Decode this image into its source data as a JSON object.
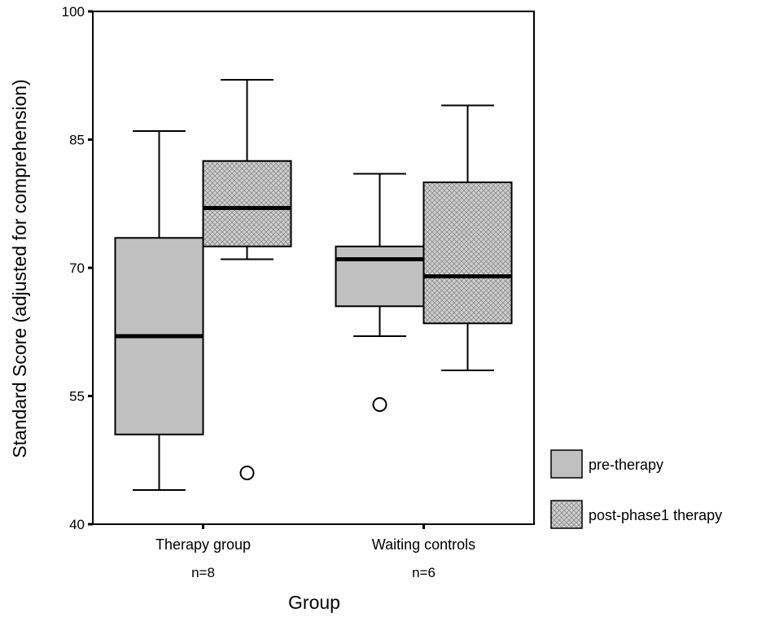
{
  "chart_data": {
    "type": "boxplot",
    "xlabel": "Group",
    "ylabel": "Standard Score (adjusted for comprehension)",
    "ylim": [
      40,
      100
    ],
    "yticks": [
      40,
      55,
      70,
      85,
      100
    ],
    "categories": [
      {
        "label": "Therapy group",
        "n_label": "n=8"
      },
      {
        "label": "Waiting controls",
        "n_label": "n=6"
      }
    ],
    "series": [
      {
        "name": "pre-therapy",
        "fill": "#c0c0c0",
        "pattern": "solid",
        "boxes": [
          {
            "whisker_low": 44,
            "q1": 50.5,
            "median": 62,
            "q3": 73.5,
            "whisker_high": 86,
            "outliers": []
          },
          {
            "whisker_low": 62,
            "q1": 65.5,
            "median": 71,
            "q3": 72.5,
            "whisker_high": 81,
            "outliers": [
              54
            ]
          }
        ]
      },
      {
        "name": "post-phase1 therapy",
        "fill": "#c8c8c8",
        "pattern": "crosshatch",
        "boxes": [
          {
            "whisker_low": 71,
            "q1": 72.5,
            "median": 77,
            "q3": 82.5,
            "whisker_high": 92,
            "outliers": [
              46
            ]
          },
          {
            "whisker_low": 58,
            "q1": 63.5,
            "median": 69,
            "q3": 80,
            "whisker_high": 89,
            "outliers": []
          }
        ]
      }
    ],
    "legend_position": "right"
  }
}
